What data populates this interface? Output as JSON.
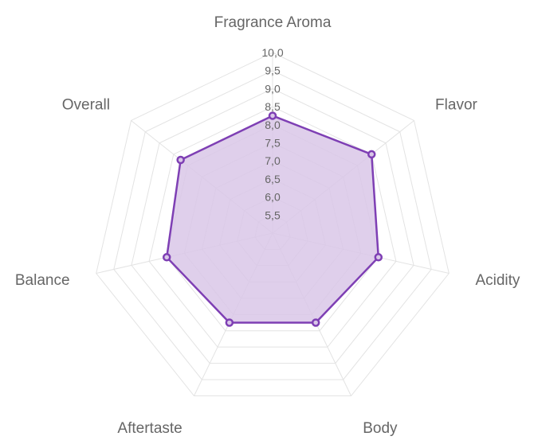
{
  "chart_data": {
    "type": "radar",
    "categories": [
      "Fragrance Aroma",
      "Flavor",
      "Acidity",
      "Body",
      "Aftertaste",
      "Balance",
      "Overall"
    ],
    "series": [
      {
        "values": [
          8.25,
          8.5,
          8.0,
          7.75,
          7.75,
          8.0,
          8.25
        ]
      }
    ],
    "rlim": [
      5.0,
      10.0
    ],
    "ticks": [
      "5,5",
      "6,0",
      "6,5",
      "7,0",
      "7,5",
      "8,0",
      "8,5",
      "9,0",
      "9,5",
      "10,0"
    ],
    "grid": true,
    "legend": "none",
    "colors": {
      "line": "#7e3fb4",
      "fill": "#d9c7e8",
      "grid": "#e3e3e3",
      "label": "#666666"
    }
  }
}
